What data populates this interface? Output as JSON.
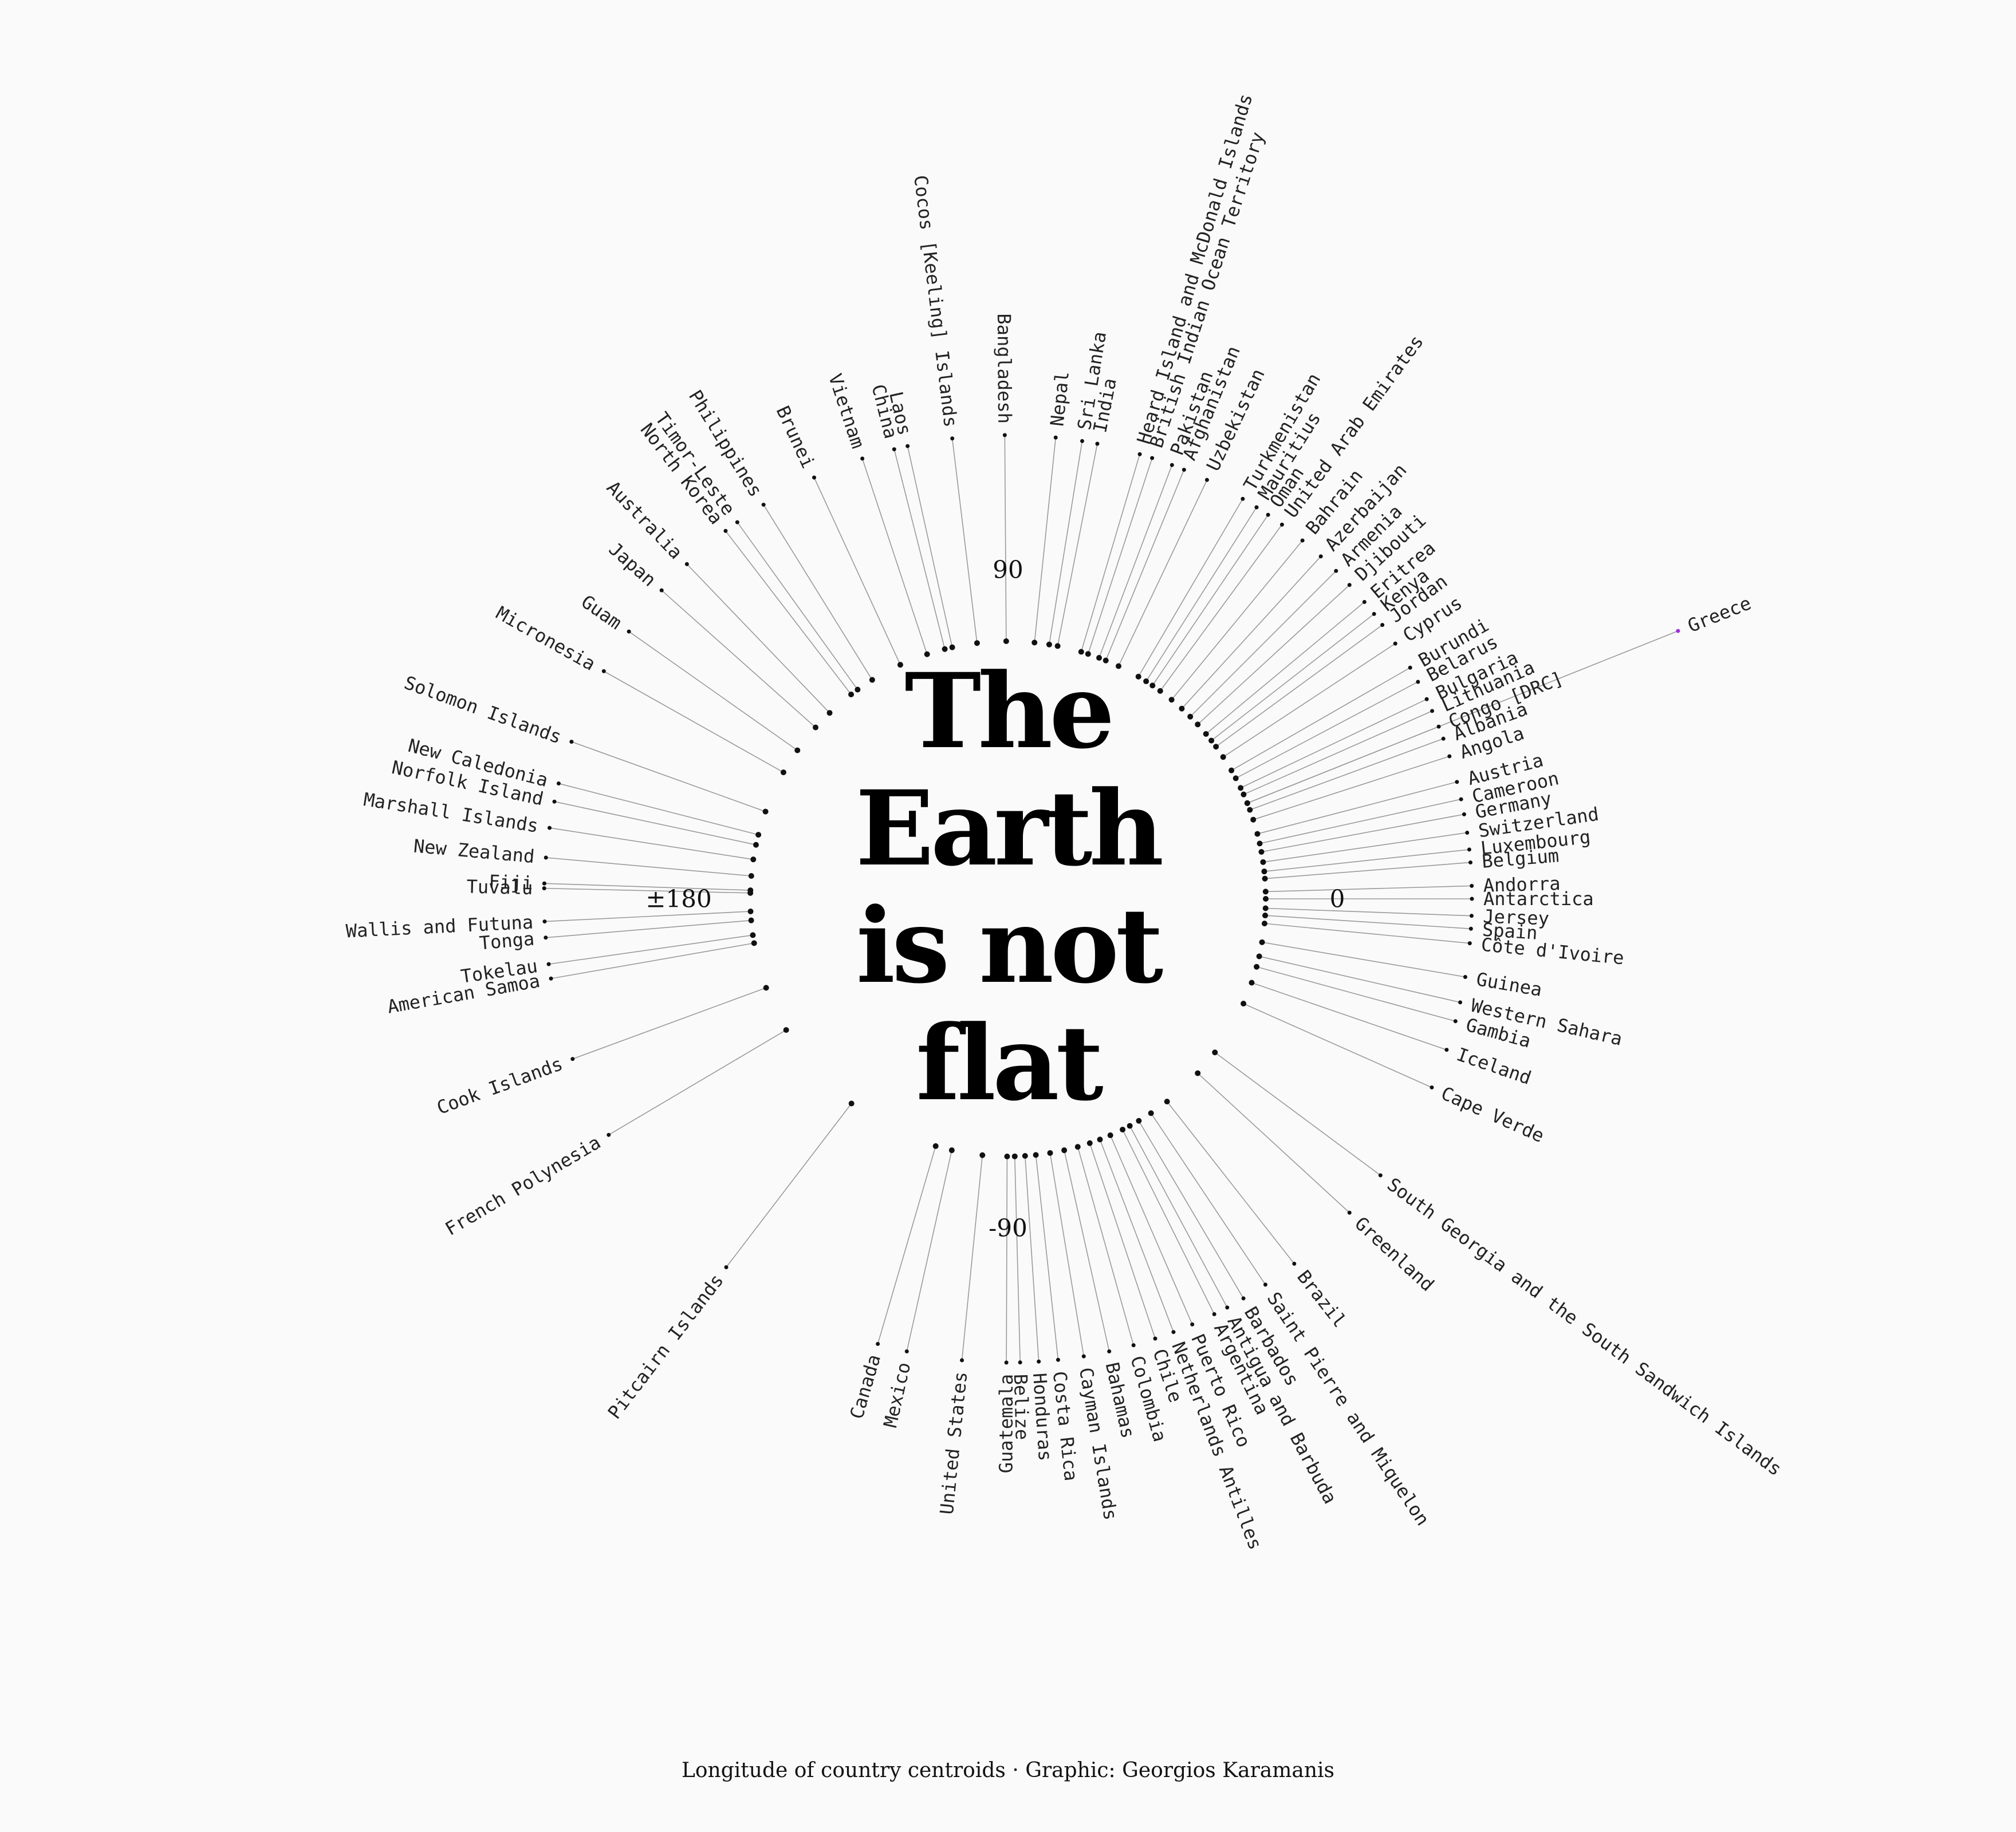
{
  "title_lines": [
    "The",
    "Earth",
    "is not",
    "flat"
  ],
  "caption": "Longitude of country centroids · Graphic: Georgios Karamanis",
  "colors": {
    "background": "#fafafa",
    "ink": "#111111",
    "highlight": "#9b30d9",
    "leader": "#9a9a9a"
  },
  "chart_data": {
    "type": "scatter",
    "polar": true,
    "angle_variable": "longitude",
    "axis_ticks": [
      {
        "value": 0,
        "label": "0"
      },
      {
        "value": 90,
        "label": "90"
      },
      {
        "value": 180,
        "label": "±180"
      },
      {
        "value": -90,
        "label": "-90"
      }
    ],
    "highlight": "Greece",
    "countries": [
      {
        "name": "Greece",
        "lon": 21.8
      },
      {
        "name": "Cyprus",
        "lon": 33.4
      },
      {
        "name": "Burundi",
        "lon": 29.9
      },
      {
        "name": "Belarus",
        "lon": 27.9
      },
      {
        "name": "Bulgaria",
        "lon": 25.5
      },
      {
        "name": "Lithuania",
        "lon": 23.9
      },
      {
        "name": "Congo [DRC]",
        "lon": 21.8
      },
      {
        "name": "Albania",
        "lon": 20.2
      },
      {
        "name": "Angola",
        "lon": 17.9
      },
      {
        "name": "Austria",
        "lon": 14.6
      },
      {
        "name": "Cameroon",
        "lon": 12.4
      },
      {
        "name": "Germany",
        "lon": 10.5
      },
      {
        "name": "Switzerland",
        "lon": 8.2
      },
      {
        "name": "Luxembourg",
        "lon": 6.1
      },
      {
        "name": "Belgium",
        "lon": 4.5
      },
      {
        "name": "Andorra",
        "lon": 1.6
      },
      {
        "name": "Antarctica",
        "lon": 0.0
      },
      {
        "name": "Jersey",
        "lon": -2.1
      },
      {
        "name": "Spain",
        "lon": -3.7
      },
      {
        "name": "Côte d'Ivoire",
        "lon": -5.5
      },
      {
        "name": "Guinea",
        "lon": -9.7
      },
      {
        "name": "Western Sahara",
        "lon": -12.9
      },
      {
        "name": "Gambia",
        "lon": -15.3
      },
      {
        "name": "Iceland",
        "lon": -19.0
      },
      {
        "name": "Cape Verde",
        "lon": -24.0
      },
      {
        "name": "South Georgia and the South Sandwich Islands",
        "lon": -36.6
      },
      {
        "name": "Greenland",
        "lon": -42.6
      },
      {
        "name": "Brazil",
        "lon": -51.9
      },
      {
        "name": "Saint Pierre and Miquelon",
        "lon": -56.3
      },
      {
        "name": "Barbados",
        "lon": -59.5
      },
      {
        "name": "Antigua and Barbuda",
        "lon": -61.8
      },
      {
        "name": "Argentina",
        "lon": -63.6
      },
      {
        "name": "Puerto Rico",
        "lon": -66.6
      },
      {
        "name": "Netherlands Antilles",
        "lon": -69.1
      },
      {
        "name": "Chile",
        "lon": -71.5
      },
      {
        "name": "Colombia",
        "lon": -74.3
      },
      {
        "name": "Bahamas",
        "lon": -77.4
      },
      {
        "name": "Cayman Islands",
        "lon": -80.6
      },
      {
        "name": "Costa Rica",
        "lon": -83.8
      },
      {
        "name": "Honduras",
        "lon": -86.2
      },
      {
        "name": "Belize",
        "lon": -88.5
      },
      {
        "name": "Guatemala",
        "lon": -90.2
      },
      {
        "name": "United States",
        "lon": -95.7
      },
      {
        "name": "Mexico",
        "lon": -102.6
      },
      {
        "name": "Canada",
        "lon": -106.3
      },
      {
        "name": "Pitcairn Islands",
        "lon": -127.4
      },
      {
        "name": "French Polynesia",
        "lon": -149.4
      },
      {
        "name": "Cook Islands",
        "lon": -159.8
      },
      {
        "name": "American Samoa",
        "lon": -170.1
      },
      {
        "name": "Tokelau",
        "lon": -171.9
      },
      {
        "name": "Tonga",
        "lon": -175.2
      },
      {
        "name": "Wallis and Futuna",
        "lon": -177.2
      },
      {
        "name": "Fiji",
        "lon": 178.1
      },
      {
        "name": "Tuvalu",
        "lon": 178.7
      },
      {
        "name": "New Zealand",
        "lon": 174.9
      },
      {
        "name": "Marshall Islands",
        "lon": 171.2
      },
      {
        "name": "Norfolk Island",
        "lon": 167.9
      },
      {
        "name": "New Caledonia",
        "lon": 165.6
      },
      {
        "name": "Solomon Islands",
        "lon": 160.2
      },
      {
        "name": "Micronesia",
        "lon": 150.6
      },
      {
        "name": "Guam",
        "lon": 144.8
      },
      {
        "name": "Japan",
        "lon": 138.3
      },
      {
        "name": "Australia",
        "lon": 133.8
      },
      {
        "name": "North Korea",
        "lon": 127.5
      },
      {
        "name": "Timor-Leste",
        "lon": 125.7
      },
      {
        "name": "Philippines",
        "lon": 121.8
      },
      {
        "name": "Brunei",
        "lon": 114.7
      },
      {
        "name": "Vietnam",
        "lon": 108.3
      },
      {
        "name": "China",
        "lon": 104.2
      },
      {
        "name": "Laos",
        "lon": 102.5
      },
      {
        "name": "Cocos [Keeling] Islands",
        "lon": 96.9
      },
      {
        "name": "Bangladesh",
        "lon": 90.4
      },
      {
        "name": "Nepal",
        "lon": 84.1
      },
      {
        "name": "Sri Lanka",
        "lon": 80.8
      },
      {
        "name": "India",
        "lon": 78.9
      },
      {
        "name": "Heard Island and McDonald Islands",
        "lon": 73.5
      },
      {
        "name": "British Indian Ocean Territory",
        "lon": 71.9
      },
      {
        "name": "Pakistan",
        "lon": 69.3
      },
      {
        "name": "Afghanistan",
        "lon": 67.7
      },
      {
        "name": "Uzbekistan",
        "lon": 64.6
      },
      {
        "name": "Turkmenistan",
        "lon": 59.6
      },
      {
        "name": "Mauritius",
        "lon": 57.6
      },
      {
        "name": "Oman",
        "lon": 55.9
      },
      {
        "name": "United Arab Emirates",
        "lon": 53.8
      },
      {
        "name": "Bahrain",
        "lon": 50.6
      },
      {
        "name": "Azerbaijan",
        "lon": 47.6
      },
      {
        "name": "Armenia",
        "lon": 45.0
      },
      {
        "name": "Djibouti",
        "lon": 42.6
      },
      {
        "name": "Eritrea",
        "lon": 39.8
      },
      {
        "name": "Kenya",
        "lon": 37.9
      },
      {
        "name": "Jordan",
        "lon": 36.2
      }
    ]
  }
}
